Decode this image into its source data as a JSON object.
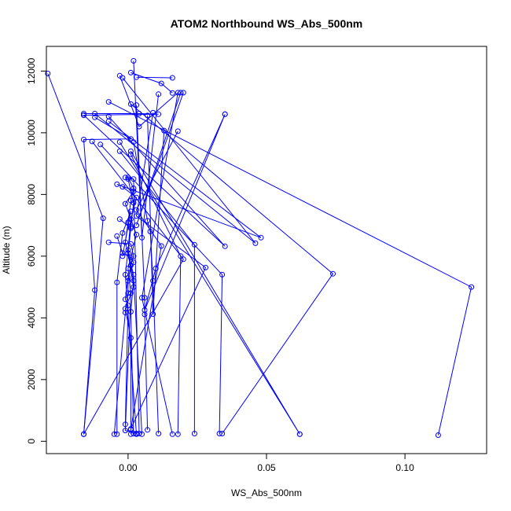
{
  "chart_data": {
    "type": "line",
    "title": "ATOM2 Northbound WS_Abs_500nm",
    "xlabel": "WS_Abs_500nm",
    "ylabel": "Altitude (m)",
    "xlim": [
      -0.0295,
      0.1295
    ],
    "ylim": [
      -400,
      12800
    ],
    "x_ticks": [
      0.0,
      0.05,
      0.1
    ],
    "x_tick_labels": [
      "0.00",
      "0.05",
      "0.10"
    ],
    "y_ticks": [
      0,
      2000,
      4000,
      6000,
      8000,
      10000,
      12000
    ],
    "y_tick_labels": [
      "0",
      "2000",
      "4000",
      "6000",
      "8000",
      "10000",
      "12000"
    ],
    "grid": false,
    "legend": "none",
    "color": "#0000ff",
    "markers": "open circle",
    "series": [
      {
        "points": [
          [
            0.003,
            11800
          ],
          [
            0.016,
            11780
          ]
        ]
      },
      {
        "points": [
          [
            -0.029,
            11920
          ],
          [
            -0.009,
            7230
          ],
          [
            -0.016,
            230
          ]
        ]
      },
      {
        "points": [
          [
            0.001,
            11950
          ],
          [
            0.012,
            11600
          ],
          [
            0.016,
            11290
          ]
        ]
      },
      {
        "points": [
          [
            -0.003,
            11850
          ],
          [
            0.004,
            10200
          ],
          [
            0.018,
            11300
          ],
          [
            0.005,
            4650
          ],
          [
            0.016,
            230
          ]
        ]
      },
      {
        "points": [
          [
            0.002,
            12330
          ],
          [
            0.005,
            6600
          ],
          [
            0.011,
            11250
          ]
        ]
      },
      {
        "points": [
          [
            0.019,
            11300
          ],
          [
            0.003,
            7000
          ],
          [
            0.02,
            11300
          ]
        ]
      },
      {
        "points": [
          [
            -0.002,
            11780
          ],
          [
            0.046,
            6420
          ],
          [
            -0.012,
            10620
          ]
        ]
      },
      {
        "points": [
          [
            -0.016,
            10620
          ],
          [
            0.004,
            10620
          ],
          [
            0.011,
            10600
          ],
          [
            -0.016,
            10570
          ]
        ]
      },
      {
        "points": [
          [
            -0.007,
            10530
          ],
          [
            0.035,
            6320
          ],
          [
            -0.016,
            10570
          ]
        ]
      },
      {
        "points": [
          [
            -0.012,
            10500
          ],
          [
            0.001,
            9800
          ],
          [
            -0.016,
            9780
          ],
          [
            -0.012,
            4900
          ],
          [
            -0.016,
            230
          ]
        ]
      },
      {
        "points": [
          [
            -0.007,
            10370
          ],
          [
            0.048,
            6600
          ],
          [
            -0.004,
            8330
          ]
        ]
      },
      {
        "points": [
          [
            0.009,
            10650
          ],
          [
            0.003,
            7300
          ],
          [
            0.028,
            5630
          ],
          [
            0.001,
            400
          ]
        ]
      },
      {
        "points": [
          [
            0.035,
            10600
          ],
          [
            0.006,
            4250
          ],
          [
            0.01,
            5600
          ],
          [
            0.035,
            10600
          ]
        ]
      },
      {
        "points": [
          [
            0.018,
            10050
          ],
          [
            0.003,
            7500
          ],
          [
            0.012,
            6330
          ],
          [
            0.001,
            380
          ]
        ]
      },
      {
        "points": [
          [
            0.013,
            10070
          ],
          [
            0.009,
            4120
          ],
          [
            0.007,
            10560
          ]
        ]
      },
      {
        "points": [
          [
            -0.007,
            11000
          ],
          [
            0.124,
            5000
          ],
          [
            0.112,
            200
          ]
        ]
      },
      {
        "points": [
          [
            0.001,
            10930
          ],
          [
            0.074,
            5430
          ],
          [
            0.034,
            250
          ]
        ]
      },
      {
        "points": [
          [
            -0.003,
            9700
          ],
          [
            0.062,
            230
          ],
          [
            0.001,
            9400
          ],
          [
            0.062,
            230
          ]
        ]
      },
      {
        "points": [
          [
            -0.013,
            9720
          ],
          [
            0.02,
            5900
          ],
          [
            -0.016,
            230
          ]
        ]
      },
      {
        "points": [
          [
            -0.01,
            9620
          ],
          [
            0.034,
            5400
          ],
          [
            0.033,
            250
          ]
        ]
      },
      {
        "points": [
          [
            -0.003,
            9400
          ],
          [
            0.024,
            6370
          ],
          [
            0.024,
            250
          ]
        ]
      },
      {
        "points": [
          [
            0.001,
            9300
          ],
          [
            0.019,
            6000
          ],
          [
            0.018,
            230
          ]
        ]
      },
      {
        "points": [
          [
            0.003,
            10900
          ],
          [
            0.006,
            4650
          ],
          [
            0.006,
            4110
          ],
          [
            0.007,
            370
          ]
        ]
      },
      {
        "points": [
          [
            -0.001,
            8550
          ],
          [
            0.002,
            8500
          ],
          [
            0.004,
            250
          ]
        ]
      },
      {
        "points": [
          [
            0.0,
            8500
          ],
          [
            0.002,
            7730
          ],
          [
            0.001,
            6950
          ],
          [
            -0.001,
            5400
          ],
          [
            0.003,
            230
          ]
        ]
      },
      {
        "points": [
          [
            -0.002,
            8250
          ],
          [
            0.003,
            7900
          ],
          [
            0.001,
            7200
          ],
          [
            0.0,
            6200
          ],
          [
            0.002,
            5200
          ],
          [
            0.001,
            4200
          ],
          [
            0.002,
            250
          ]
        ]
      },
      {
        "points": [
          [
            0.002,
            8100
          ],
          [
            -0.001,
            7700
          ],
          [
            0.003,
            6700
          ],
          [
            0.0,
            5600
          ],
          [
            0.001,
            4800
          ],
          [
            -0.001,
            350
          ],
          [
            0.003,
            250
          ]
        ]
      },
      {
        "points": [
          [
            -0.003,
            7200
          ],
          [
            0.001,
            6900
          ],
          [
            0.0,
            6100
          ],
          [
            0.002,
            5000
          ],
          [
            -0.001,
            4300
          ],
          [
            0.001,
            3350
          ],
          [
            0.001,
            230
          ]
        ]
      },
      {
        "points": [
          [
            -0.004,
            6650
          ],
          [
            -0.002,
            6100
          ],
          [
            0.001,
            5950
          ],
          [
            0.002,
            5800
          ],
          [
            0.0,
            5300
          ],
          [
            -0.001,
            4600
          ],
          [
            0.0,
            4400
          ],
          [
            -0.001,
            550
          ]
        ]
      },
      {
        "points": [
          [
            -0.007,
            6450
          ],
          [
            0.001,
            6400
          ],
          [
            0.002,
            6000
          ],
          [
            0.001,
            5700
          ],
          [
            0.0,
            5200
          ],
          [
            0.0,
            4800
          ],
          [
            -0.001,
            4170
          ],
          [
            -0.005,
            230
          ]
        ]
      },
      {
        "points": [
          [
            -0.002,
            6000
          ],
          [
            0.001,
            7450
          ],
          [
            -0.002,
            6750
          ],
          [
            -0.004,
            5150
          ],
          [
            -0.004,
            230
          ]
        ]
      },
      {
        "points": [
          [
            0.0,
            8550
          ],
          [
            0.002,
            8200
          ],
          [
            0.001,
            7800
          ],
          [
            0.0,
            7100
          ],
          [
            -0.001,
            6450
          ],
          [
            0.002,
            5400
          ],
          [
            0.005,
            230
          ]
        ]
      },
      {
        "points": [
          [
            0.002,
            9700
          ],
          [
            0.007,
            7150
          ],
          [
            0.008,
            6800
          ],
          [
            0.009,
            5200
          ],
          [
            0.011,
            250
          ]
        ]
      }
    ]
  }
}
